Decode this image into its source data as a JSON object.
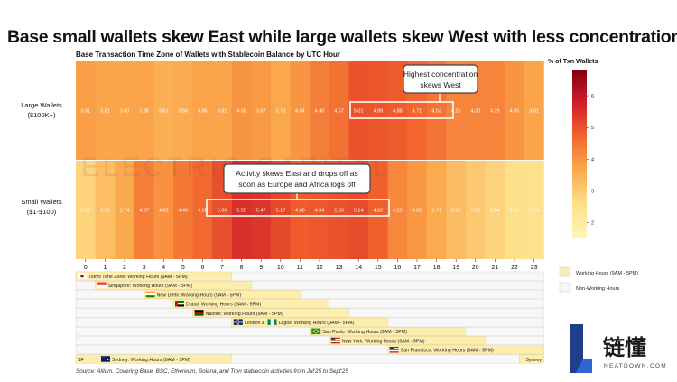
{
  "title": "Base small wallets skew East while large wallets skew West with less concentration",
  "chart_data": {
    "type": "heatmap",
    "title": "Base Transaction Time Zone of Wallets with Stablecoin Balance by UTC Hour",
    "x_label": "UTC Hour",
    "x": [
      "0",
      "1",
      "2",
      "3",
      "4",
      "5",
      "6",
      "7",
      "8",
      "9",
      "10",
      "11",
      "12",
      "13",
      "14",
      "15",
      "16",
      "17",
      "18",
      "19",
      "20",
      "21",
      "22",
      "23"
    ],
    "rows": [
      {
        "label_line1": "Large Wallets",
        "label_line2": "($100K+)",
        "values": [
          3.91,
          3.81,
          3.83,
          3.85,
          3.61,
          3.69,
          3.85,
          3.81,
          4.08,
          3.97,
          3.78,
          4.04,
          4.4,
          4.57,
          5.01,
          4.99,
          4.88,
          4.71,
          4.53,
          4.26,
          4.3,
          4.29,
          4.05,
          3.81
        ]
      },
      {
        "label_line1": "Small Wallets",
        "label_line2": "($1-$100)",
        "values": [
          2.85,
          3.33,
          3.74,
          4.37,
          4.09,
          4.46,
          4.68,
          5.06,
          5.55,
          5.47,
          5.17,
          4.88,
          4.94,
          5.03,
          5.14,
          4.82,
          4.25,
          4.02,
          3.71,
          3.34,
          3.09,
          2.84,
          2.61,
          2.54
        ]
      }
    ],
    "colorbar": {
      "title": "% of Txn Wallets",
      "min": 1.5,
      "max": 6.8,
      "ticks": [
        2,
        3,
        4,
        5,
        6
      ]
    }
  },
  "annotations": [
    {
      "line1": "Highest concentration",
      "line2": "skews West"
    },
    {
      "line1": "Activity skews East and drops off as",
      "line2": "soon as Europe and Africa logs off"
    }
  ],
  "watermark": "ELECTRIC CAPITAL",
  "timezones": [
    {
      "label": "Tokyo Time Zone: Working Hours (9AM - 5PM)",
      "start": 0,
      "end": 8,
      "flag": "japan"
    },
    {
      "label": "Singapore: Working Hours (9AM - 5PM)",
      "start": 1,
      "end": 9,
      "flag": "singapore"
    },
    {
      "label": "New Delhi: Working Hours (9AM - 5PM)",
      "start": 3.5,
      "end": 11.5,
      "flag": "india"
    },
    {
      "label": "Dubai: Working Hours (9AM - 5PM)",
      "start": 5,
      "end": 13,
      "flag": "uae"
    },
    {
      "label": "Nairobi: Working Hours (9AM - 5PM)",
      "start": 6,
      "end": 14,
      "flag": "kenya"
    },
    {
      "label": "London &",
      "label2": "Lagos: Working Hours (9AM - 5PM)",
      "start": 8,
      "end": 16,
      "flag": "uk",
      "flag2": "nigeria"
    },
    {
      "label": "Sao Paulo: Working Hours (9AM - 5PM)",
      "start": 12,
      "end": 20,
      "flag": "brazil"
    },
    {
      "label": "New York: Working Hours (9AM - 5PM)",
      "start": 13,
      "end": 21,
      "flag": "usa"
    },
    {
      "label": "San Francisco: Working Hours (9AM - 5PM)",
      "start": 16,
      "end": 24,
      "flag": "usa"
    },
    {
      "label": "Sydney: Working Hours (9AM - 5PM)",
      "start": 0,
      "end": 8,
      "flag": "australia",
      "pre": "SF",
      "post": "Sydney"
    }
  ],
  "legend": {
    "working": "Working Hours (9AM - 5PM)",
    "nonworking": "Non-Working Hours"
  },
  "source": "Source: Allium. Covering Base, BSC, Ethereum, Solana, and Tron stablecoin activities from Jul'25 to Sept'25",
  "logo": {
    "chinese": "链懂",
    "latin": "NEATDOWN.COM"
  },
  "colors": {
    "working": "#fdeeb0",
    "nonworking": "#f7f7f7",
    "annotation_border": "#444444"
  }
}
